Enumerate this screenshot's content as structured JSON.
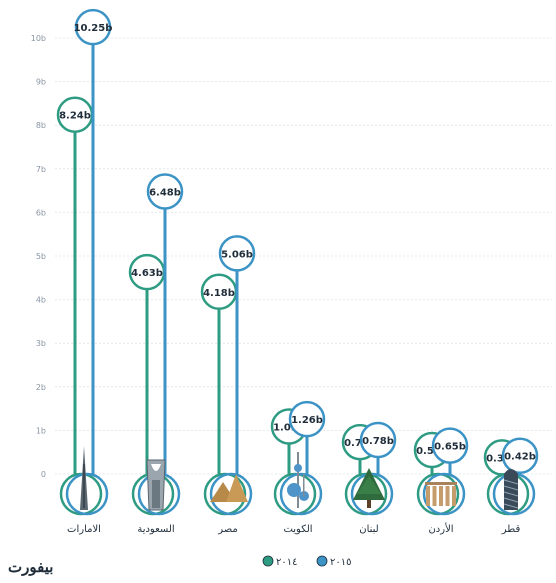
{
  "chart_data": {
    "type": "bar",
    "title": "",
    "xlabel": "",
    "ylabel": "",
    "ylim": [
      0,
      10
    ],
    "y_ticks": [
      "0",
      "1b",
      "2b",
      "3b",
      "4b",
      "5b",
      "6b",
      "7b",
      "8b",
      "9b",
      "10b"
    ],
    "grid": true,
    "legend_position": "bottom",
    "categories": [
      "الامارات",
      "السعودية",
      "مصر",
      "الكويت",
      "لبنان",
      "الأردن",
      "قطر"
    ],
    "category_icons": [
      "burj-khalifa-icon",
      "kingdom-tower-icon",
      "pyramids-icon",
      "kuwait-towers-icon",
      "cedar-tree-icon",
      "petra-columns-icon",
      "doha-tower-icon"
    ],
    "series": [
      {
        "name": "٢٠١٤",
        "color": "#2e9b83",
        "values": [
          8.24,
          4.63,
          4.18,
          1.09,
          0.73,
          0.55,
          0.38
        ],
        "labels": [
          "8.24b",
          "4.63b",
          "4.18b",
          "1.09b",
          "0.73b",
          "0.55b",
          "0.38b"
        ]
      },
      {
        "name": "٢٠١٥",
        "color": "#3b93c6",
        "values": [
          10.25,
          6.48,
          5.06,
          1.26,
          0.78,
          0.65,
          0.42
        ],
        "labels": [
          "10.25b",
          "6.48b",
          "5.06b",
          "1.26b",
          "0.78b",
          "0.65b",
          "0.42b"
        ]
      }
    ]
  },
  "brand": {
    "logo_text": "بيفورت"
  }
}
